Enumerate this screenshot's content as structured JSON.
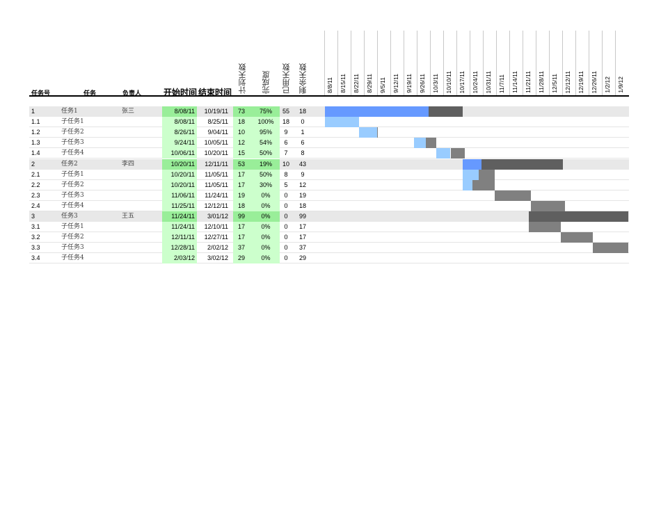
{
  "headers": {
    "id": "任务号",
    "task": "任务",
    "owner": "负责人",
    "start": "开始时间",
    "end": "结束时间",
    "planned": "计划天数",
    "progress": "完成度",
    "used": "已用天数",
    "remaining": "剩余天数"
  },
  "timeline": {
    "start": "2011-08-08",
    "weeks": [
      "8/8/11",
      "8/15/11",
      "8/22/11",
      "8/29/11",
      "9/5/11",
      "9/12/11",
      "9/19/11",
      "9/26/11",
      "10/3/11",
      "10/10/11",
      "10/17/11",
      "10/24/11",
      "10/31/11",
      "11/7/11",
      "11/14/11",
      "11/21/11",
      "11/28/11",
      "12/5/11",
      "12/12/11",
      "12/19/11",
      "12/26/11",
      "1/2/12",
      "1/9/12"
    ]
  },
  "colors": {
    "parent_done": "#6699ff",
    "parent_remaining": "#5f5f5f",
    "child_done": "#99ccff",
    "child_remaining": "#808080"
  },
  "rows": [
    {
      "id": "1",
      "task": "任务1",
      "owner": "张三",
      "start": "8/08/11",
      "end": "10/19/11",
      "planned": "73",
      "progress": "75%",
      "used": "55",
      "remaining": "18",
      "parent": true,
      "iso": "2011-08-08",
      "pct": 0.75
    },
    {
      "id": "1.1",
      "task": "子任务1",
      "owner": "",
      "start": "8/08/11",
      "end": "8/25/11",
      "planned": "18",
      "progress": "100%",
      "used": "18",
      "remaining": "0",
      "parent": false,
      "iso": "2011-08-08",
      "pct": 1.0
    },
    {
      "id": "1.2",
      "task": "子任务2",
      "owner": "",
      "start": "8/26/11",
      "end": "9/04/11",
      "planned": "10",
      "progress": "95%",
      "used": "9",
      "remaining": "1",
      "parent": false,
      "iso": "2011-08-26",
      "pct": 0.95
    },
    {
      "id": "1.3",
      "task": "子任务3",
      "owner": "",
      "start": "9/24/11",
      "end": "10/05/11",
      "planned": "12",
      "progress": "54%",
      "used": "6",
      "remaining": "6",
      "parent": false,
      "iso": "2011-09-24",
      "pct": 0.54
    },
    {
      "id": "1.4",
      "task": "子任务4",
      "owner": "",
      "start": "10/06/11",
      "end": "10/20/11",
      "planned": "15",
      "progress": "50%",
      "used": "7",
      "remaining": "8",
      "parent": false,
      "iso": "2011-10-06",
      "pct": 0.5
    },
    {
      "id": "2",
      "task": "任务2",
      "owner": "李四",
      "start": "10/20/11",
      "end": "12/11/11",
      "planned": "53",
      "progress": "19%",
      "used": "10",
      "remaining": "43",
      "parent": true,
      "iso": "2011-10-20",
      "pct": 0.19
    },
    {
      "id": "2.1",
      "task": "子任务1",
      "owner": "",
      "start": "10/20/11",
      "end": "11/05/11",
      "planned": "17",
      "progress": "50%",
      "used": "8",
      "remaining": "9",
      "parent": false,
      "iso": "2011-10-20",
      "pct": 0.5
    },
    {
      "id": "2.2",
      "task": "子任务2",
      "owner": "",
      "start": "10/20/11",
      "end": "11/05/11",
      "planned": "17",
      "progress": "30%",
      "used": "5",
      "remaining": "12",
      "parent": false,
      "iso": "2011-10-20",
      "pct": 0.3
    },
    {
      "id": "2.3",
      "task": "子任务3",
      "owner": "",
      "start": "11/06/11",
      "end": "11/24/11",
      "planned": "19",
      "progress": "0%",
      "used": "0",
      "remaining": "19",
      "parent": false,
      "iso": "2011-11-06",
      "pct": 0
    },
    {
      "id": "2.4",
      "task": "子任务4",
      "owner": "",
      "start": "11/25/11",
      "end": "12/12/11",
      "planned": "18",
      "progress": "0%",
      "used": "0",
      "remaining": "18",
      "parent": false,
      "iso": "2011-11-25",
      "pct": 0
    },
    {
      "id": "3",
      "task": "任务3",
      "owner": "王五",
      "start": "11/24/11",
      "end": "3/01/12",
      "planned": "99",
      "progress": "0%",
      "used": "0",
      "remaining": "99",
      "parent": true,
      "iso": "2011-11-24",
      "pct": 0
    },
    {
      "id": "3.1",
      "task": "子任务1",
      "owner": "",
      "start": "11/24/11",
      "end": "12/10/11",
      "planned": "17",
      "progress": "0%",
      "used": "0",
      "remaining": "17",
      "parent": false,
      "iso": "2011-11-24",
      "pct": 0
    },
    {
      "id": "3.2",
      "task": "子任务2",
      "owner": "",
      "start": "12/11/11",
      "end": "12/27/11",
      "planned": "17",
      "progress": "0%",
      "used": "0",
      "remaining": "17",
      "parent": false,
      "iso": "2011-12-11",
      "pct": 0
    },
    {
      "id": "3.3",
      "task": "子任务3",
      "owner": "",
      "start": "12/28/11",
      "end": "2/02/12",
      "planned": "37",
      "progress": "0%",
      "used": "0",
      "remaining": "37",
      "parent": false,
      "iso": "2011-12-28",
      "pct": 0
    },
    {
      "id": "3.4",
      "task": "子任务4",
      "owner": "",
      "start": "2/03/12",
      "end": "3/02/12",
      "planned": "29",
      "progress": "0%",
      "used": "0",
      "remaining": "29",
      "parent": false,
      "iso": "2012-02-03",
      "pct": 0
    }
  ]
}
